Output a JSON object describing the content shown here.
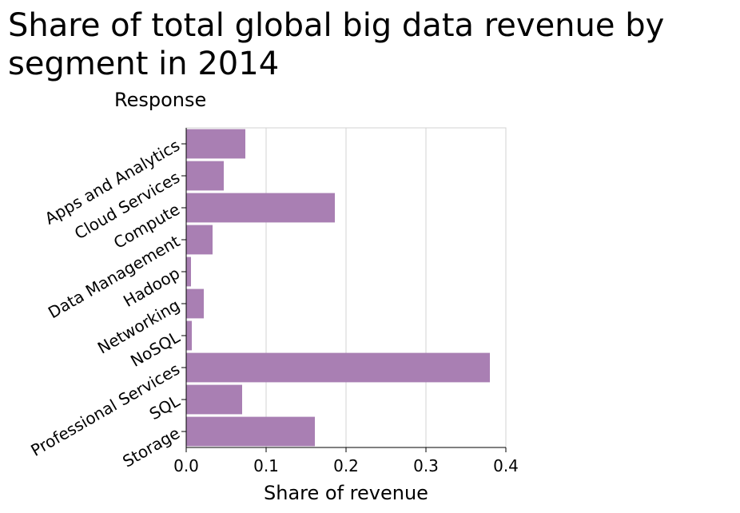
{
  "chart_data": {
    "type": "bar",
    "orientation": "horizontal",
    "title": "Share of total global big data revenue by segment in 2014",
    "xlabel": "Share of revenue",
    "ylabel": "Response",
    "categories": [
      "Apps and Analytics",
      "Cloud Services",
      "Compute",
      "Data Management",
      "Hadoop",
      "Networking",
      "NoSQL",
      "Professional Services",
      "SQL",
      "Storage"
    ],
    "values": [
      0.074,
      0.047,
      0.186,
      0.033,
      0.006,
      0.022,
      0.007,
      0.38,
      0.07,
      0.161
    ],
    "xlim": [
      0,
      0.4
    ],
    "xticks": [
      0.0,
      0.1,
      0.2,
      0.3,
      0.4
    ],
    "xtick_labels": [
      "0.0",
      "0.1",
      "0.2",
      "0.3",
      "0.4"
    ],
    "bar_color": "#a97fb3",
    "grid": true
  }
}
